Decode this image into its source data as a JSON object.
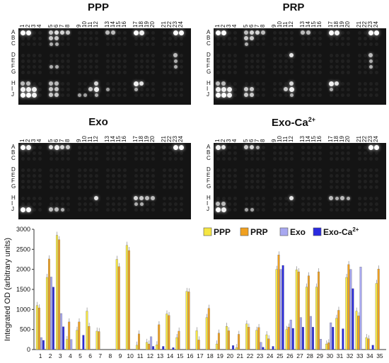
{
  "panels": [
    {
      "title": "PPP"
    },
    {
      "title": "PRP"
    },
    {
      "title": "Exo"
    },
    {
      "title_main": "Exo-Ca",
      "title_sup": "2+"
    }
  ],
  "array_columns": [
    "1",
    "2",
    "3",
    "4",
    "5",
    "6",
    "7",
    "8",
    "9",
    "10",
    "11",
    "12",
    "13",
    "14",
    "15",
    "16",
    "17",
    "18",
    "19",
    "20",
    "21",
    "22",
    "23",
    "24"
  ],
  "array_rows": [
    "A",
    "B",
    "C",
    "D",
    "E",
    "F",
    "G",
    "H",
    "I",
    "J"
  ],
  "chart_data": {
    "type": "bar",
    "ylabel": "Integrated OD (arbitrary units)",
    "ylim": [
      0,
      3000
    ],
    "yticks": [
      0,
      500,
      1000,
      1500,
      2000,
      2500,
      3000
    ],
    "categories": [
      "1",
      "2",
      "3",
      "4",
      "5",
      "6",
      "7",
      "8",
      "9",
      "10",
      "11",
      "12",
      "13",
      "14",
      "15",
      "16",
      "17",
      "18",
      "19",
      "20",
      "21",
      "22",
      "23",
      "24",
      "25",
      "26",
      "27",
      "28",
      "29",
      "30",
      "31",
      "32",
      "33",
      "34",
      "35"
    ],
    "legend_position": "top-right",
    "series": [
      {
        "name": "PPP",
        "color": "#f5e642",
        "values": [
          1100,
          1800,
          2850,
          250,
          480,
          960,
          460,
          0,
          2250,
          2600,
          110,
          180,
          120,
          890,
          300,
          1450,
          470,
          800,
          140,
          580,
          50,
          640,
          480,
          370,
          2000,
          500,
          1990,
          1560,
          1560,
          140,
          780,
          1800,
          960,
          300,
          1650
        ]
      },
      {
        "name": "PRP",
        "color": "#f0a020",
        "values": [
          1040,
          2260,
          2740,
          690,
          690,
          580,
          450,
          0,
          2070,
          2470,
          390,
          140,
          620,
          850,
          460,
          1440,
          240,
          1030,
          410,
          470,
          380,
          560,
          550,
          270,
          2360,
          560,
          1940,
          1840,
          1940,
          170,
          980,
          2120,
          840,
          270,
          2010
        ]
      },
      {
        "name": "Exo",
        "color": "#a8a8f0",
        "values": [
          300,
          1810,
          900,
          250,
          0,
          0,
          0,
          0,
          0,
          0,
          0,
          320,
          0,
          0,
          0,
          0,
          0,
          0,
          0,
          0,
          0,
          0,
          180,
          0,
          2000,
          740,
          800,
          830,
          260,
          670,
          0,
          2000,
          2060,
          0,
          0
        ]
      },
      {
        "name": "Exo-Ca",
        "name_sup": "2+",
        "color": "#2a2ae0",
        "values": [
          230,
          1560,
          570,
          0,
          360,
          0,
          0,
          0,
          0,
          0,
          0,
          80,
          80,
          50,
          0,
          0,
          0,
          0,
          0,
          100,
          0,
          0,
          60,
          80,
          2100,
          530,
          560,
          560,
          0,
          560,
          520,
          1520,
          0,
          110,
          0
        ]
      }
    ]
  }
}
